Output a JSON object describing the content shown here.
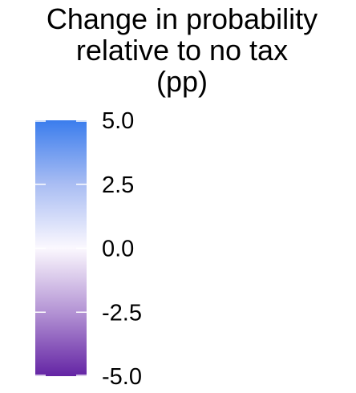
{
  "chart_data": {
    "type": "colorbar-legend",
    "title_lines": [
      "Change in probability",
      "relative to no tax",
      "(pp)"
    ],
    "scale": {
      "min": -5.0,
      "max": 5.0,
      "ticks": [
        5.0,
        2.5,
        0.0,
        -2.5,
        -5.0
      ],
      "tick_labels": [
        "5.0",
        "2.5",
        "0.0",
        "-2.5",
        "-5.0"
      ]
    },
    "color_stops": [
      {
        "value": 5.0,
        "color": "#3b7ded"
      },
      {
        "value": 2.5,
        "color": "#a9bdf3"
      },
      {
        "value": 0.0,
        "color": "#fbf8fe"
      },
      {
        "value": -2.5,
        "color": "#b393d4"
      },
      {
        "value": -5.0,
        "color": "#6424a4"
      }
    ]
  }
}
